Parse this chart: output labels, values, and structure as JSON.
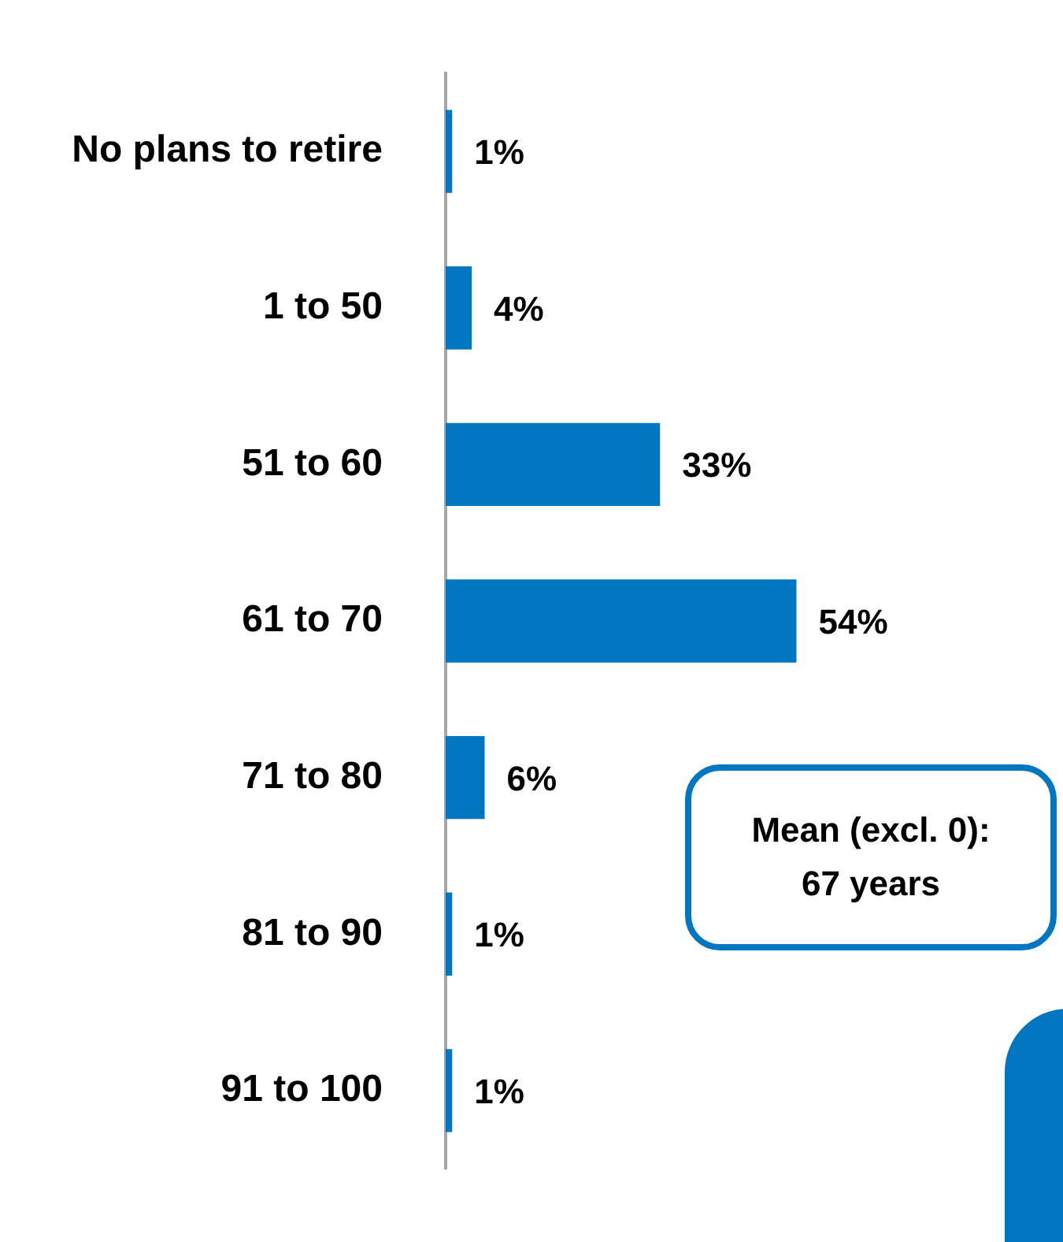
{
  "chart_data": {
    "type": "bar",
    "orientation": "horizontal",
    "categories": [
      "No plans to retire",
      "1 to 50",
      "51 to 60",
      "61 to 70",
      "71 to 80",
      "81 to 90",
      "91 to 100"
    ],
    "values": [
      1,
      4,
      33,
      54,
      6,
      1,
      1
    ],
    "value_labels": [
      "1%",
      "4%",
      "33%",
      "54%",
      "6%",
      "1%",
      "1%"
    ],
    "color": "#0077c0",
    "legend": false,
    "annotations": [
      "Mean (excl. 0): 67 years"
    ]
  }
}
